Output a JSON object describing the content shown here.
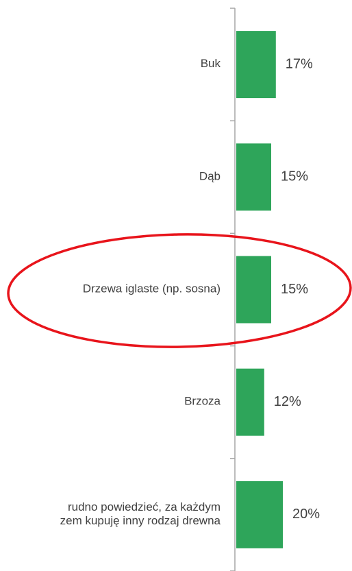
{
  "chart_data": {
    "type": "hbar",
    "categories": [
      "Buk",
      "Dąb",
      "Drzewa iglaste (np. sosna)",
      "Brzoza",
      "rudno powiedzieć, za każdym\nzem kupuję inny rodzaj drewna"
    ],
    "values": [
      17,
      15,
      15,
      12,
      20
    ],
    "value_labels": [
      "17%",
      "15%",
      "15%",
      "12%",
      "20%"
    ],
    "color": "#2ea55a",
    "xlim": [
      0,
      50
    ]
  }
}
